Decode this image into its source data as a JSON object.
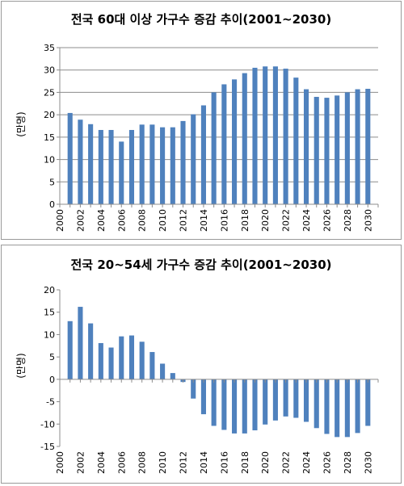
{
  "chart_data": [
    {
      "type": "bar",
      "title": "전국 60대 이상 가구수 증감 추이(2001~2030)",
      "ylabel": "(만명)",
      "xlabel": "",
      "ylim": [
        0,
        35
      ],
      "yticks": [
        0,
        5,
        10,
        15,
        20,
        25,
        30,
        35
      ],
      "xticks": [
        "2000",
        "2002",
        "2004",
        "2006",
        "2008",
        "2010",
        "2012",
        "2014",
        "2016",
        "2018",
        "2020",
        "2022",
        "2024",
        "2026",
        "2028",
        "2030"
      ],
      "x": [
        2001,
        2002,
        2003,
        2004,
        2005,
        2006,
        2007,
        2008,
        2009,
        2010,
        2011,
        2012,
        2013,
        2014,
        2015,
        2016,
        2017,
        2018,
        2019,
        2020,
        2021,
        2022,
        2023,
        2024,
        2025,
        2026,
        2027,
        2028,
        2029,
        2030
      ],
      "values": [
        20.4,
        18.9,
        17.9,
        16.6,
        16.6,
        14.0,
        16.6,
        17.8,
        17.8,
        17.2,
        17.2,
        18.6,
        20.1,
        22.1,
        25.0,
        26.8,
        27.9,
        29.3,
        30.5,
        30.8,
        30.8,
        30.3,
        28.3,
        25.7,
        24.0,
        23.8,
        24.3,
        25.0,
        25.7,
        25.8
      ],
      "grid": true,
      "color": "#4f81bd"
    },
    {
      "type": "bar",
      "title": "전국 20~54세 가구수 증감 추이(2001~2030)",
      "ylabel": "(만명)",
      "xlabel": "",
      "ylim": [
        -15,
        20
      ],
      "yticks": [
        -15,
        -10,
        -5,
        0,
        5,
        10,
        15,
        20
      ],
      "xticks": [
        "2000",
        "2002",
        "2004",
        "2006",
        "2008",
        "2010",
        "2012",
        "2014",
        "2016",
        "2018",
        "2020",
        "2022",
        "2024",
        "2026",
        "2028",
        "2030"
      ],
      "x": [
        2001,
        2002,
        2003,
        2004,
        2005,
        2006,
        2007,
        2008,
        2009,
        2010,
        2011,
        2012,
        2013,
        2014,
        2015,
        2016,
        2017,
        2018,
        2019,
        2020,
        2021,
        2022,
        2023,
        2024,
        2025,
        2026,
        2027,
        2028,
        2029,
        2030
      ],
      "values": [
        13.0,
        16.2,
        12.5,
        8.1,
        7.1,
        9.6,
        9.8,
        8.4,
        6.1,
        3.5,
        1.4,
        -0.6,
        -4.3,
        -7.8,
        -10.4,
        -11.3,
        -12.1,
        -12.1,
        -11.4,
        -10.1,
        -9.2,
        -8.3,
        -8.6,
        -9.5,
        -10.9,
        -12.2,
        -12.9,
        -12.9,
        -12.0,
        -10.4
      ],
      "grid": false,
      "color": "#4f81bd"
    }
  ]
}
